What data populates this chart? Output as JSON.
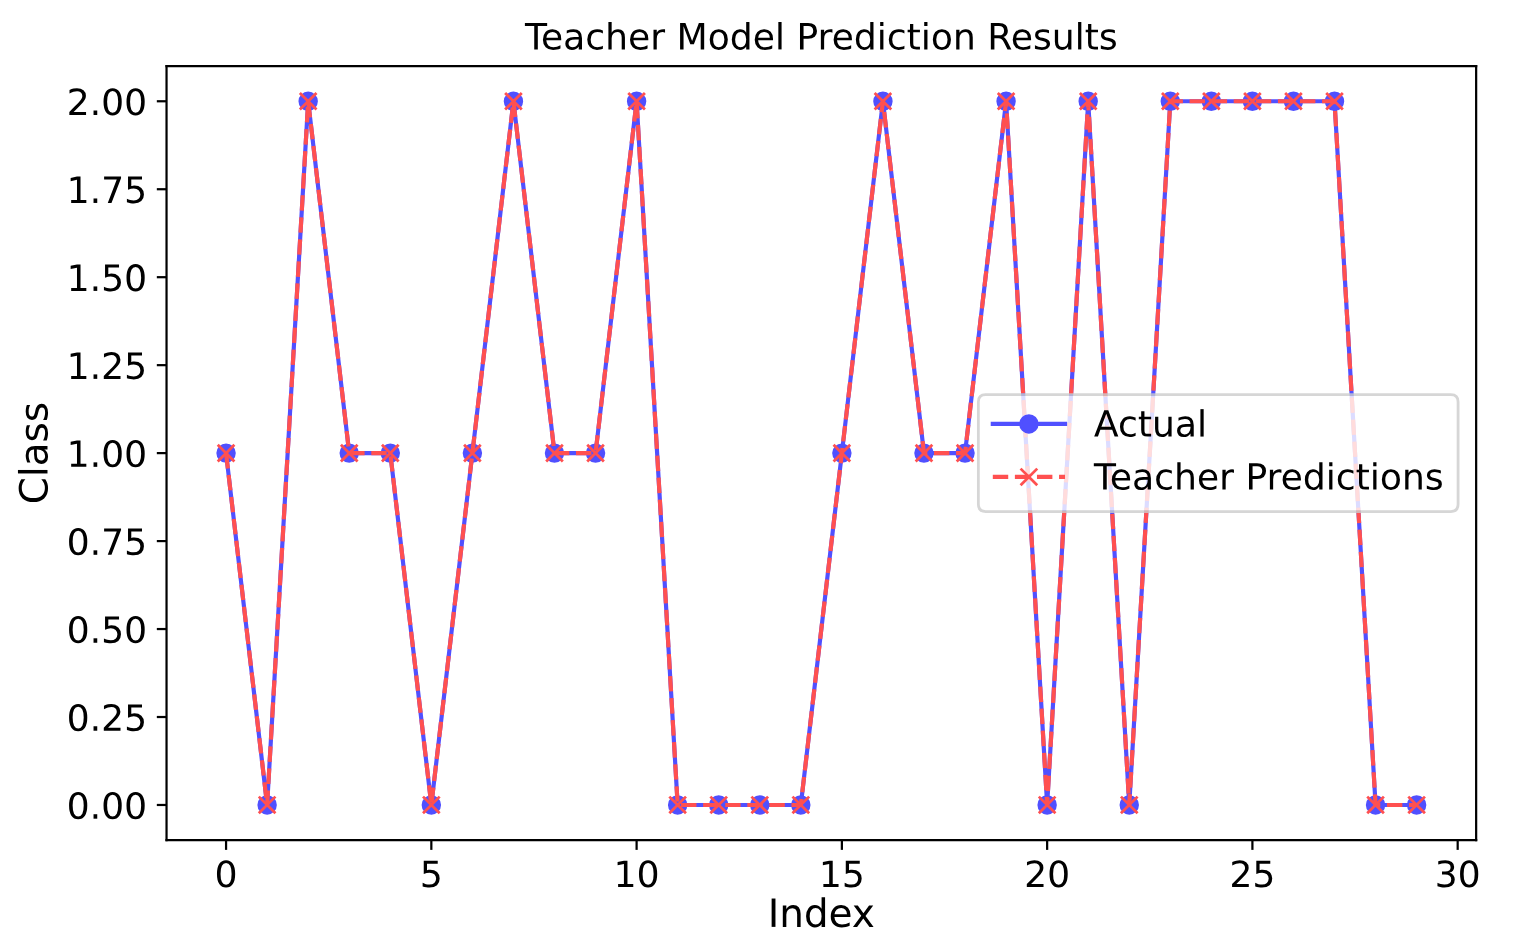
{
  "chart_data": {
    "type": "line",
    "title": "Teacher Model Prediction Results",
    "xlabel": "Index",
    "ylabel": "Class",
    "x": [
      0,
      1,
      2,
      3,
      4,
      5,
      6,
      7,
      8,
      9,
      10,
      11,
      12,
      13,
      14,
      15,
      16,
      17,
      18,
      19,
      20,
      21,
      22,
      23,
      24,
      25,
      26,
      27,
      28,
      29
    ],
    "series": [
      {
        "name": "Actual",
        "color": "#5050ff",
        "marker": "circle",
        "line_style": "solid",
        "values": [
          1,
          0,
          2,
          1,
          1,
          0,
          1,
          2,
          1,
          1,
          2,
          0,
          0,
          0,
          0,
          1,
          2,
          1,
          1,
          2,
          0,
          2,
          0,
          2,
          2,
          2,
          2,
          2,
          0,
          0
        ]
      },
      {
        "name": "Teacher Predictions",
        "color": "#ff5050",
        "marker": "cross",
        "line_style": "dashed",
        "values": [
          1,
          0,
          2,
          1,
          1,
          0,
          1,
          2,
          1,
          1,
          2,
          0,
          0,
          0,
          0,
          1,
          2,
          1,
          1,
          2,
          0,
          2,
          0,
          2,
          2,
          2,
          2,
          2,
          0,
          0
        ]
      }
    ],
    "xlim": [
      -1.45,
      30.45
    ],
    "xticks": [
      0,
      5,
      10,
      15,
      20,
      25,
      30
    ],
    "ylim": [
      -0.1,
      2.1
    ],
    "yticks": [
      {
        "value": 0,
        "label": "0.00"
      },
      {
        "value": 0.25,
        "label": "0.25"
      },
      {
        "value": 0.5,
        "label": "0.50"
      },
      {
        "value": 0.75,
        "label": "0.75"
      },
      {
        "value": 1,
        "label": "1.00"
      },
      {
        "value": 1.25,
        "label": "1.25"
      },
      {
        "value": 1.5,
        "label": "1.50"
      },
      {
        "value": 1.75,
        "label": "1.75"
      },
      {
        "value": 2,
        "label": "2.00"
      }
    ],
    "legend": "right",
    "grid": false
  }
}
